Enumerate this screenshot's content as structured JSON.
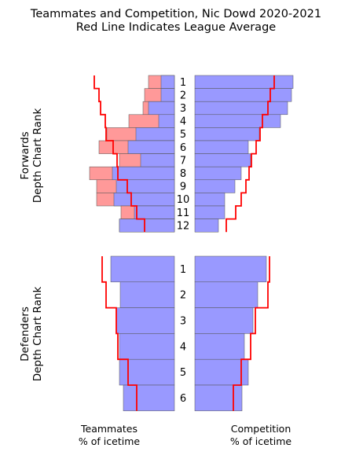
{
  "chart_data": {
    "type": "bar",
    "title": "Teammates and Competition, Nic Dowd 2020-2021",
    "subtitle": "Red Line Indicates League Average",
    "left_xlabel": "Teammates\n% of icetime",
    "right_xlabel": "Competition\n% of icetime",
    "colors": {
      "player": "#9999ff",
      "excess": "#ff9999",
      "league": "#ff0000",
      "edge": "#555555"
    },
    "forwards": {
      "ylabel": "Forwards\nDepth Chart Rank",
      "ranks": [
        "1",
        "2",
        "3",
        "4",
        "5",
        "6",
        "7",
        "8",
        "9",
        "10",
        "11",
        "12"
      ],
      "teammates_blue": [
        0.17,
        0.17,
        0.33,
        0.2,
        0.49,
        0.59,
        0.43,
        0.79,
        0.74,
        0.77,
        0.51,
        0.7
      ],
      "teammates_pink": [
        0.33,
        0.38,
        0.4,
        0.58,
        0.86,
        0.96,
        0.7,
        1.08,
        0.99,
        0.99,
        0.68,
        0.7
      ],
      "teammates_league": [
        1.02,
        0.96,
        0.94,
        0.88,
        0.87,
        0.78,
        0.73,
        0.72,
        0.6,
        0.55,
        0.48,
        0.38
      ],
      "competition": [
        1.25,
        1.23,
        1.18,
        1.09,
        0.82,
        0.68,
        0.71,
        0.59,
        0.51,
        0.38,
        0.38,
        0.3
      ],
      "competition_league": [
        1.01,
        0.96,
        0.93,
        0.86,
        0.83,
        0.78,
        0.72,
        0.69,
        0.65,
        0.59,
        0.52,
        0.4
      ]
    },
    "defenders": {
      "ylabel": "Defenders\nDepth Chart Rank",
      "ranks": [
        "1",
        "2",
        "3",
        "4",
        "5",
        "6"
      ],
      "teammates_blue": [
        0.81,
        0.69,
        0.74,
        0.7,
        0.7,
        0.65
      ],
      "teammates_league": [
        0.92,
        0.87,
        0.74,
        0.72,
        0.59,
        0.48
      ],
      "competition": [
        0.91,
        0.8,
        0.74,
        0.63,
        0.68,
        0.6
      ],
      "competition_league": [
        0.95,
        0.93,
        0.77,
        0.71,
        0.59,
        0.49
      ]
    }
  }
}
